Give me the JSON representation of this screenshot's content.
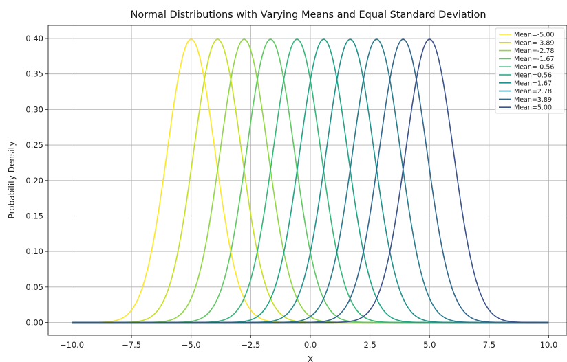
{
  "chart_data": {
    "type": "line",
    "title": "Normal Distributions with Varying Means and Equal Standard Deviation",
    "xlabel": "X",
    "ylabel": "Probability Density",
    "xlim": [
      -10,
      10
    ],
    "ylim": [
      0,
      0.4
    ],
    "xticks": [
      -10.0,
      -7.5,
      -5.0,
      -2.5,
      0.0,
      2.5,
      5.0,
      7.5,
      10.0
    ],
    "xtick_labels": [
      "−10.0",
      "−7.5",
      "−5.0",
      "−2.5",
      "0.0",
      "2.5",
      "5.0",
      "7.5",
      "10.0"
    ],
    "yticks": [
      0.0,
      0.05,
      0.1,
      0.15,
      0.2,
      0.25,
      0.3,
      0.35,
      0.4
    ],
    "ytick_labels": [
      "0.00",
      "0.05",
      "0.10",
      "0.15",
      "0.20",
      "0.25",
      "0.30",
      "0.35",
      "0.40"
    ],
    "std_dev": 1,
    "grid": true,
    "legend_position": "top-right",
    "series": [
      {
        "name": "Mean=-5.00",
        "mean": -5.0,
        "color": "#fde725"
      },
      {
        "name": "Mean=-3.89",
        "mean": -3.89,
        "color": "#c8e020"
      },
      {
        "name": "Mean=-2.78",
        "mean": -2.78,
        "color": "#90d743"
      },
      {
        "name": "Mean=-1.67",
        "mean": -1.67,
        "color": "#5ec962"
      },
      {
        "name": "Mean=-0.56",
        "mean": -0.56,
        "color": "#35b779"
      },
      {
        "name": "Mean=0.56",
        "mean": 0.56,
        "color": "#20a486"
      },
      {
        "name": "Mean=1.67",
        "mean": 1.67,
        "color": "#21918c"
      },
      {
        "name": "Mean=2.78",
        "mean": 2.78,
        "color": "#287c8e"
      },
      {
        "name": "Mean=3.89",
        "mean": 3.89,
        "color": "#31688e"
      },
      {
        "name": "Mean=5.00",
        "mean": 5.0,
        "color": "#3b528b"
      }
    ]
  }
}
